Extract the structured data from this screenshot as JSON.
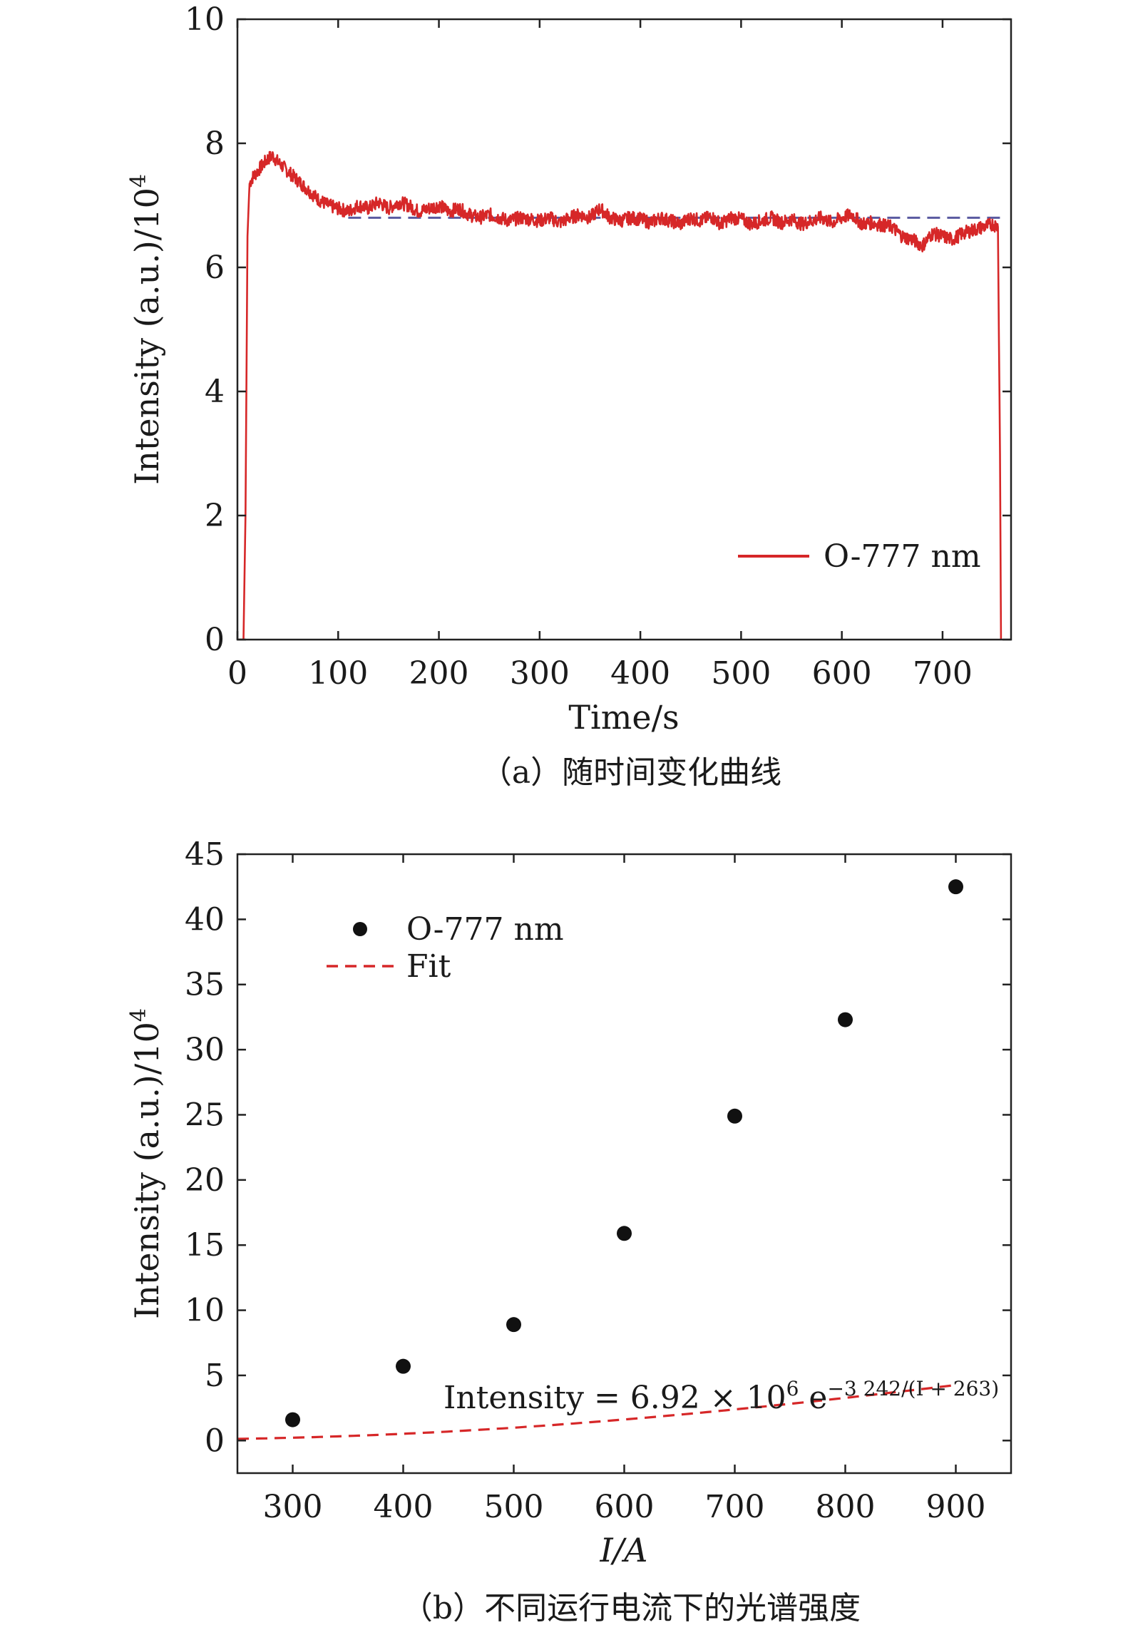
{
  "chart_data": [
    {
      "type": "line",
      "xlabel": "Time/s",
      "ylabel": "Intensity (a.u.)/10",
      "ylabel_sup": "4",
      "xlim": [
        0,
        768
      ],
      "ylim": [
        0,
        10
      ],
      "xticks": [
        0,
        100,
        200,
        300,
        400,
        500,
        600,
        700
      ],
      "yticks": [
        0,
        2,
        4,
        6,
        8,
        10
      ],
      "legend": {
        "position": "bottom-right",
        "label": "O-777 nm"
      },
      "caption": "（a）随时间变化曲线",
      "series": [
        {
          "name": "O-777 nm",
          "color": "#d62728",
          "style": "solid",
          "x": [
            0,
            6,
            8,
            10,
            12,
            15,
            20,
            25,
            30,
            35,
            40,
            50,
            60,
            70,
            80,
            90,
            100,
            110,
            120,
            130,
            140,
            150,
            160,
            170,
            180,
            190,
            200,
            210,
            220,
            230,
            240,
            250,
            260,
            270,
            280,
            290,
            300,
            310,
            320,
            330,
            340,
            350,
            360,
            370,
            380,
            390,
            400,
            410,
            420,
            430,
            440,
            450,
            460,
            470,
            480,
            490,
            500,
            510,
            520,
            530,
            540,
            550,
            560,
            570,
            580,
            590,
            600,
            610,
            620,
            630,
            640,
            650,
            660,
            670,
            680,
            690,
            700,
            710,
            720,
            730,
            740,
            750,
            755,
            757,
            758
          ],
          "y": [
            0,
            0,
            2.0,
            6.5,
            7.35,
            7.45,
            7.55,
            7.65,
            7.75,
            7.8,
            7.7,
            7.55,
            7.4,
            7.25,
            7.1,
            7.0,
            6.95,
            6.9,
            7.0,
            6.95,
            7.05,
            6.95,
            7.05,
            7.0,
            6.9,
            6.95,
            7.0,
            6.9,
            6.95,
            6.85,
            6.8,
            6.85,
            6.8,
            6.75,
            6.8,
            6.78,
            6.75,
            6.8,
            6.72,
            6.8,
            6.85,
            6.8,
            6.95,
            6.8,
            6.75,
            6.8,
            6.78,
            6.72,
            6.8,
            6.75,
            6.7,
            6.8,
            6.75,
            6.82,
            6.7,
            6.8,
            6.78,
            6.7,
            6.75,
            6.8,
            6.72,
            6.78,
            6.7,
            6.75,
            6.8,
            6.72,
            6.8,
            6.85,
            6.7,
            6.72,
            6.68,
            6.65,
            6.5,
            6.45,
            6.35,
            6.55,
            6.5,
            6.45,
            6.55,
            6.6,
            6.65,
            6.7,
            6.65,
            3.0,
            0
          ]
        },
        {
          "name": "",
          "color": "#5a5aa0",
          "style": "dashed",
          "x": [
            110,
            760
          ],
          "y": [
            6.8,
            6.8
          ]
        }
      ]
    },
    {
      "type": "scatter",
      "xlabel": "I/A",
      "ylabel": "Intensity (a.u.)/10",
      "ylabel_sup": "4",
      "xlim": [
        250,
        950
      ],
      "ylim": [
        -2.5,
        45
      ],
      "xticks": [
        300,
        400,
        500,
        600,
        700,
        800,
        900
      ],
      "yticks": [
        0,
        5,
        10,
        15,
        20,
        25,
        30,
        35,
        40,
        45
      ],
      "legend": {
        "position": "top-left",
        "points_label": "O-777 nm",
        "fit_label": "Fit"
      },
      "annotation": {
        "prefix": "Intensity = 6.92 × 10",
        "exp1": "6",
        "mid": " e",
        "exp2": "−3 242/(I + 263)"
      },
      "caption": "（b）不同运行电流下的光谱强度",
      "series": [
        {
          "name": "O-777 nm",
          "color": "#111111",
          "x": [
            300,
            400,
            500,
            600,
            700,
            800,
            900
          ],
          "y": [
            1.6,
            5.7,
            8.9,
            15.9,
            24.9,
            32.3,
            42.5
          ]
        }
      ],
      "fit": {
        "name": "Fit",
        "color": "#d62728",
        "style": "dashed",
        "formula": {
          "A": 69.2,
          "B": 3242,
          "C": 263
        },
        "x_range": [
          250,
          900
        ]
      }
    }
  ]
}
